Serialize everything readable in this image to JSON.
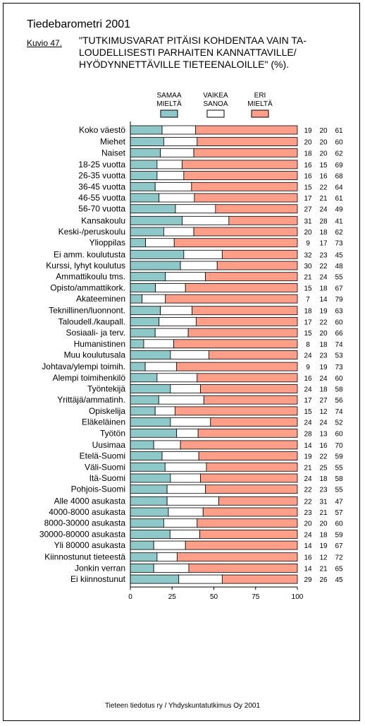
{
  "header": {
    "suptitle": "Tiedebarometri 2001",
    "figure_label": "Kuvio 47.",
    "title_lines": [
      "\"TUTKIMUSVARAT PITÄISI KOHDENTAA VAIN TA-",
      "LOUDELLISESTI PARHAITEN KANNATTAVILLE/",
      "HYÖDYNNETTÄVILLE TIETEENALOILLE\" (%)."
    ]
  },
  "source": "Tieteen tiedotus ry / Yhdyskuntatutkimus Oy 2001",
  "chart_data": {
    "type": "bar",
    "orientation": "horizontal",
    "stacked": true,
    "title": "\"TUTKIMUSVARAT PITÄISI KOHDENTAA VAIN TALOUDELLISESTI PARHAITEN KANNATTAVILLE/HYÖDYNNETTÄVILLE TIETEENALOILLE\" (%).",
    "xlim": [
      0,
      100
    ],
    "x_ticks": [
      0,
      25,
      50,
      75,
      100
    ],
    "grid": false,
    "legend_position": "top",
    "series": [
      {
        "name": "SAMAA MIELTÄ",
        "legend_lines": [
          "SAMAA",
          "MIELTÄ"
        ],
        "color": "#8fc8c8"
      },
      {
        "name": "VAIKEA SANOA",
        "legend_lines": [
          "VAIKEA",
          "SANOA"
        ],
        "color": "#ffffff"
      },
      {
        "name": "ERI MIELTÄ",
        "legend_lines": [
          "ERI",
          "MIELTÄ"
        ],
        "color": "#ff9f8a"
      }
    ],
    "groups": [
      {
        "rows": [
          {
            "label": "Koko väestö",
            "values": [
              19,
              20,
              61
            ]
          }
        ]
      },
      {
        "rows": [
          {
            "label": "Miehet",
            "values": [
              20,
              20,
              60
            ]
          },
          {
            "label": "Naiset",
            "values": [
              18,
              20,
              62
            ]
          }
        ]
      },
      {
        "rows": [
          {
            "label": "18-25 vuotta",
            "values": [
              16,
              15,
              69
            ]
          },
          {
            "label": "26-35 vuotta",
            "values": [
              16,
              16,
              68
            ]
          },
          {
            "label": "36-45 vuotta",
            "values": [
              15,
              22,
              64
            ]
          },
          {
            "label": "46-55 vuotta",
            "values": [
              17,
              21,
              61
            ]
          },
          {
            "label": "56-70 vuotta",
            "values": [
              27,
              24,
              49
            ]
          }
        ]
      },
      {
        "rows": [
          {
            "label": "Kansakoulu",
            "values": [
              31,
              28,
              41
            ]
          },
          {
            "label": "Keski-/peruskoulu",
            "values": [
              20,
              18,
              62
            ]
          },
          {
            "label": "Ylioppilas",
            "values": [
              9,
              17,
              73
            ]
          }
        ]
      },
      {
        "rows": [
          {
            "label": "Ei amm. koulutusta",
            "values": [
              32,
              23,
              45
            ]
          },
          {
            "label": "Kurssi, lyhyt koulutus",
            "values": [
              30,
              22,
              48
            ]
          },
          {
            "label": "Ammattikoulu tms.",
            "values": [
              21,
              24,
              55
            ]
          },
          {
            "label": "Opisto/ammattikork.",
            "values": [
              15,
              18,
              67
            ]
          },
          {
            "label": "Akateeminen",
            "values": [
              7,
              14,
              79
            ]
          }
        ]
      },
      {
        "rows": [
          {
            "label": "Teknillinen/luonnont.",
            "values": [
              18,
              19,
              63
            ]
          },
          {
            "label": "Taloudell./kaupall.",
            "values": [
              17,
              22,
              60
            ]
          },
          {
            "label": "Sosiaali- ja terv.",
            "values": [
              15,
              20,
              66
            ]
          },
          {
            "label": "Humanistinen",
            "values": [
              8,
              18,
              74
            ]
          },
          {
            "label": "Muu koulutusala",
            "values": [
              24,
              23,
              53
            ]
          }
        ]
      },
      {
        "rows": [
          {
            "label": "Johtava/ylempi toimih.",
            "values": [
              9,
              19,
              73
            ]
          },
          {
            "label": "Alempi toimihenkilö",
            "values": [
              16,
              24,
              60
            ]
          },
          {
            "label": "Työntekijä",
            "values": [
              24,
              18,
              58
            ]
          },
          {
            "label": "Yrittäjä/ammatinh.",
            "values": [
              17,
              27,
              56
            ]
          },
          {
            "label": "Opiskelija",
            "values": [
              15,
              12,
              74
            ]
          },
          {
            "label": "Eläkeläinen",
            "values": [
              24,
              24,
              52
            ]
          },
          {
            "label": "Työtön",
            "values": [
              28,
              13,
              60
            ]
          }
        ]
      },
      {
        "rows": [
          {
            "label": "Uusimaa",
            "values": [
              14,
              16,
              70
            ]
          },
          {
            "label": "Etelä-Suomi",
            "values": [
              19,
              22,
              59
            ]
          },
          {
            "label": "Väli-Suomi",
            "values": [
              21,
              25,
              55
            ]
          },
          {
            "label": "Itä-Suomi",
            "values": [
              24,
              18,
              58
            ]
          },
          {
            "label": "Pohjois-Suomi",
            "values": [
              22,
              23,
              55
            ]
          }
        ]
      },
      {
        "rows": [
          {
            "label": "Alle 4000 asukasta",
            "values": [
              22,
              31,
              47
            ]
          },
          {
            "label": "4000-8000 asukasta",
            "values": [
              23,
              21,
              57
            ]
          },
          {
            "label": "8000-30000 asukasta",
            "values": [
              20,
              20,
              60
            ]
          },
          {
            "label": "30000-80000 asukasta",
            "values": [
              24,
              18,
              59
            ]
          },
          {
            "label": "Yli 80000 asukasta",
            "values": [
              14,
              19,
              67
            ]
          }
        ]
      },
      {
        "rows": [
          {
            "label": "Kiinnostunut tieteestä",
            "values": [
              16,
              12,
              72
            ]
          },
          {
            "label": "Jonkin verran",
            "values": [
              14,
              21,
              65
            ]
          },
          {
            "label": "Ei kiinnostunut",
            "values": [
              29,
              26,
              45
            ]
          }
        ]
      }
    ]
  }
}
